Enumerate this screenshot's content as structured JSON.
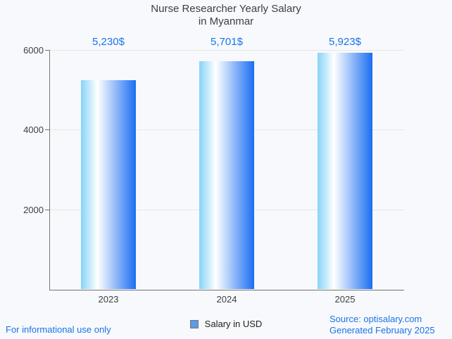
{
  "title": {
    "line1": "Nurse Researcher Yearly Salary",
    "line2": "in Myanmar"
  },
  "chart_data": {
    "type": "bar",
    "title": "Nurse Researcher Yearly Salary in Myanmar",
    "categories": [
      "2023",
      "2024",
      "2025"
    ],
    "values": [
      5230,
      5701,
      5923
    ],
    "value_labels": [
      "5,230$",
      "5,701$",
      "5,923$"
    ],
    "series": [
      {
        "name": "Salary in USD",
        "values": [
          5230,
          5701,
          5923
        ]
      }
    ],
    "xlabel": "",
    "ylabel": "",
    "ylim": [
      0,
      6000
    ],
    "y_ticks": [
      2000,
      4000,
      6000
    ],
    "y_tick_labels": [
      "2000",
      "4000",
      "6000"
    ],
    "grid": true,
    "legend_position": "bottom"
  },
  "legend": {
    "label": "Salary in USD"
  },
  "footer": {
    "left": "For informational use only",
    "source": "Source: optisalary.com",
    "generated": "Generated February 2025"
  },
  "colors": {
    "accent_blue": "#1a73e8",
    "title_text": "#3c4043",
    "tick_text": "#3c4043",
    "grid": "#e6e6e6",
    "axis": "#757575",
    "background": "#f8f9fc",
    "legend_swatch": "#5b9be8",
    "bar_gradient_left": "#87d3f8",
    "bar_gradient_mid": "#ffffff",
    "bar_gradient_right": "#1b6ef3"
  }
}
